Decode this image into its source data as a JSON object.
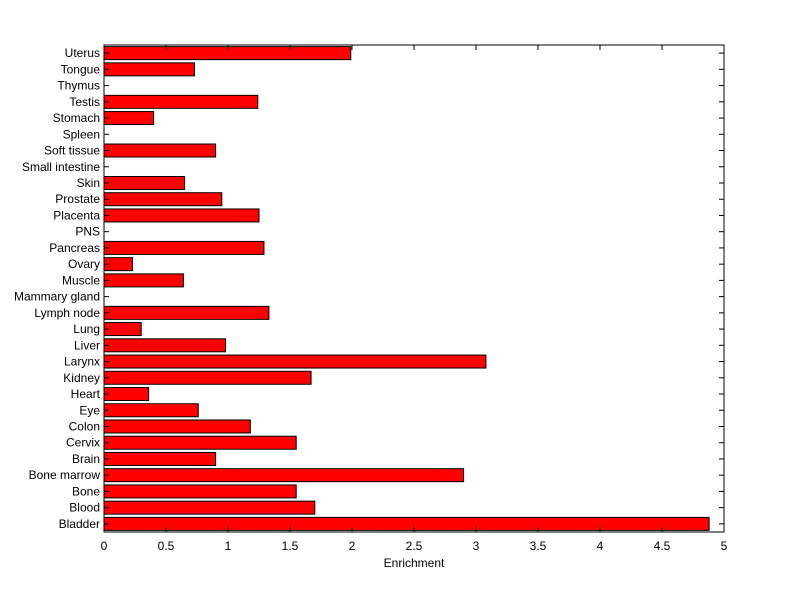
{
  "chart_data": {
    "type": "bar",
    "orientation": "horizontal",
    "title": "",
    "xlabel": "Enrichment",
    "ylabel": "",
    "xlim": [
      0,
      5
    ],
    "xticks": [
      0,
      0.5,
      1,
      1.5,
      2,
      2.5,
      3,
      3.5,
      4,
      4.5,
      5
    ],
    "xtick_labels": [
      "0",
      "0.5",
      "1",
      "1.5",
      "2",
      "2.5",
      "3",
      "3.5",
      "4",
      "4.5",
      "5"
    ],
    "grid": false,
    "bar_color": "#ff0000",
    "categories": [
      "Bladder",
      "Blood",
      "Bone",
      "Bone marrow",
      "Brain",
      "Cervix",
      "Colon",
      "Eye",
      "Heart",
      "Kidney",
      "Larynx",
      "Liver",
      "Lung",
      "Lymph node",
      "Mammary gland",
      "Muscle",
      "Ovary",
      "Pancreas",
      "PNS",
      "Placenta",
      "Prostate",
      "Skin",
      "Small intestine",
      "Soft tissue",
      "Spleen",
      "Stomach",
      "Testis",
      "Thymus",
      "Tongue",
      "Uterus"
    ],
    "values": [
      4.88,
      1.7,
      1.55,
      2.9,
      0.9,
      1.55,
      1.18,
      0.76,
      0.36,
      1.67,
      3.08,
      0.98,
      0.3,
      1.33,
      0,
      0.64,
      0.23,
      1.29,
      0,
      1.25,
      0.95,
      0.65,
      0,
      0.9,
      0,
      0.4,
      1.24,
      0,
      0.73,
      1.99
    ]
  }
}
